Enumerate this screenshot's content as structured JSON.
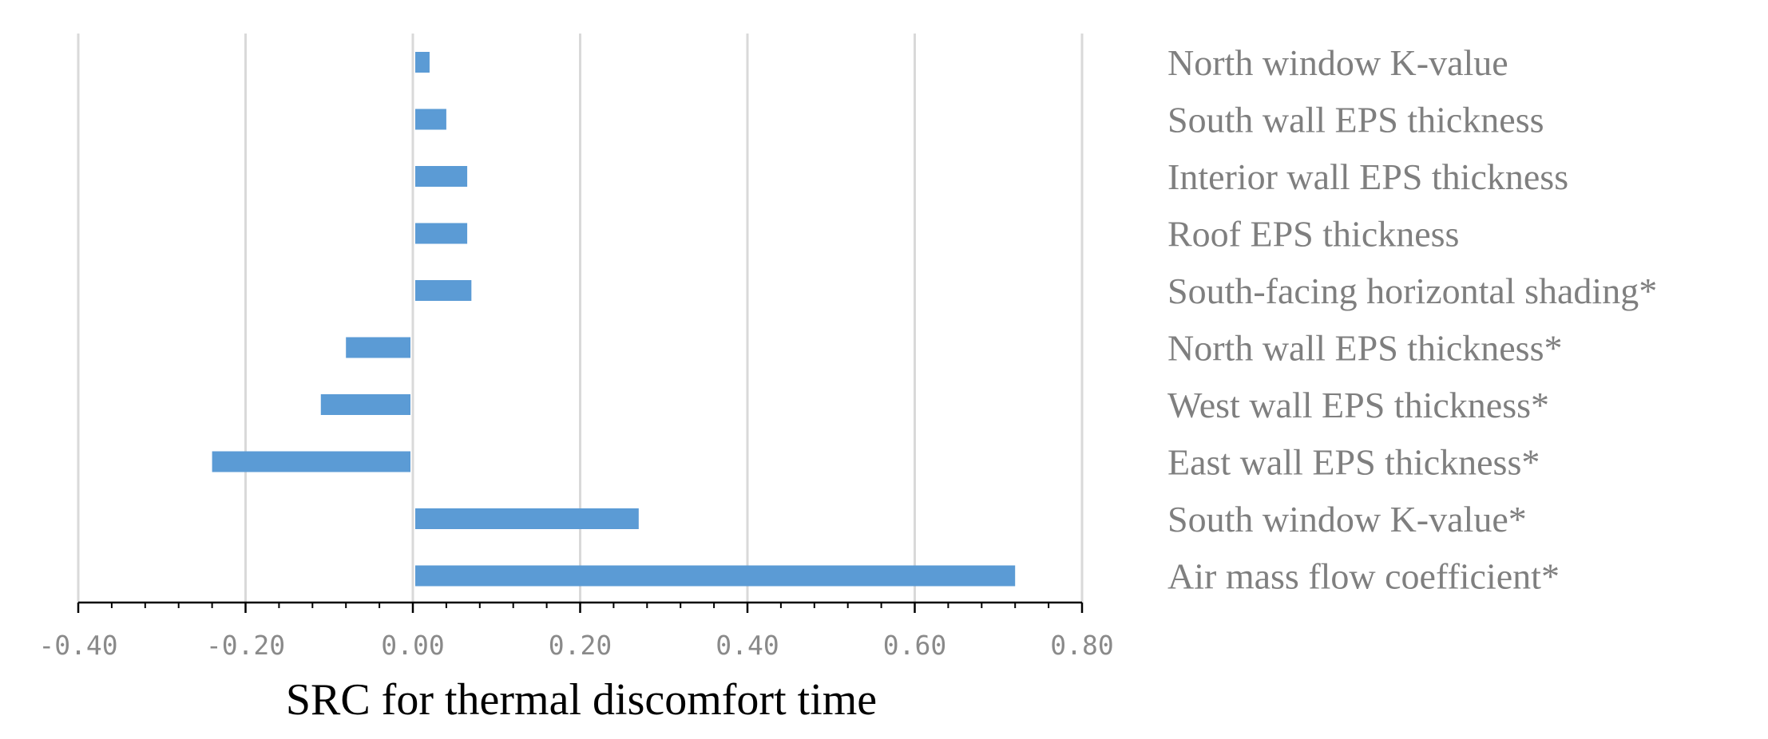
{
  "chart_data": {
    "type": "bar",
    "orientation": "horizontal",
    "title": "",
    "xlabel": "SRC for thermal discomfort time",
    "ylabel": "",
    "xlim": [
      -0.4,
      0.8
    ],
    "xticks": [
      -0.4,
      -0.2,
      0.0,
      0.2,
      0.4,
      0.6,
      0.8
    ],
    "xtick_labels": [
      "-0.40",
      "-0.20",
      "0.00",
      "0.20",
      "0.40",
      "0.60",
      "0.80"
    ],
    "grid": "vertical",
    "categories": [
      "North window K-value",
      "South wall EPS thickness",
      "Interior wall EPS thickness",
      "Roof EPS thickness",
      "South-facing horizontal shading*",
      "North wall EPS thickness*",
      "West wall EPS thickness*",
      "East wall EPS thickness*",
      "South window K-value*",
      "Air mass flow coefficient*"
    ],
    "values": [
      0.02,
      0.04,
      0.065,
      0.065,
      0.07,
      -0.08,
      -0.11,
      -0.24,
      0.27,
      0.72
    ],
    "colors": {
      "bar": "#5b9bd5",
      "grid": "#d9d9d9",
      "axis": "#000000",
      "tick_label": "#8a8a8a",
      "category_label": "#7f7f7f"
    }
  }
}
